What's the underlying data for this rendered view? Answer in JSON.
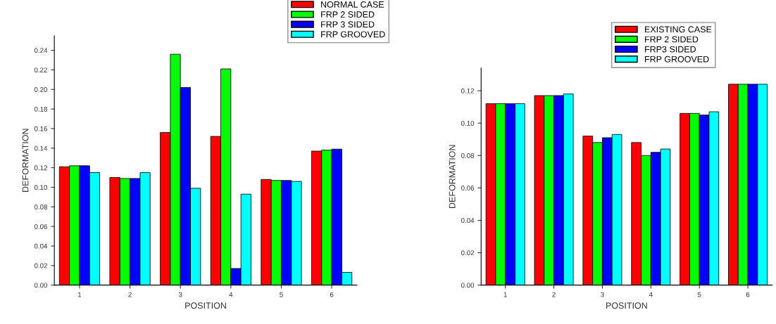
{
  "chart_data": [
    {
      "type": "bar",
      "xlabel": "POSITION",
      "ylabel": "DEFORMATION",
      "categories": [
        "1",
        "2",
        "3",
        "4",
        "5",
        "6"
      ],
      "series": [
        {
          "name": "NORMAL CASE",
          "color": "#ff0000",
          "values": [
            0.121,
            0.11,
            0.156,
            0.152,
            0.108,
            0.137
          ]
        },
        {
          "name": "FRP 2 SIDED",
          "color": "#00ff00",
          "values": [
            0.122,
            0.109,
            0.236,
            0.221,
            0.107,
            0.138
          ]
        },
        {
          "name": "FRP 3 SIDED",
          "color": "#0000ff",
          "values": [
            0.122,
            0.109,
            0.202,
            0.017,
            0.107,
            0.139
          ]
        },
        {
          "name": "FRP GROOVED",
          "color": "#00ffff",
          "values": [
            0.115,
            0.115,
            0.099,
            0.093,
            0.106,
            0.013
          ]
        }
      ],
      "ylim": [
        0,
        0.255
      ],
      "yticks": [
        {
          "value": 0,
          "label": "0.00"
        },
        {
          "value": 0.02,
          "label": "0.02"
        },
        {
          "value": 0.04,
          "label": "0.04"
        },
        {
          "value": 0.06,
          "label": "0.06"
        },
        {
          "value": 0.08,
          "label": "0.08"
        },
        {
          "value": 0.1,
          "label": "0.10"
        },
        {
          "value": 0.12,
          "label": "0.12"
        },
        {
          "value": 0.14,
          "label": "0.14"
        },
        {
          "value": 0.16,
          "label": "0.16"
        },
        {
          "value": 0.18,
          "label": "0.18"
        },
        {
          "value": 0.2,
          "label": "0.20"
        },
        {
          "value": 0.22,
          "label": "0.22"
        },
        {
          "value": 0.24,
          "label": "0.24"
        }
      ],
      "legend": "top right",
      "grid": false
    },
    {
      "type": "bar",
      "xlabel": "POSITION",
      "ylabel": "DEFORMATION",
      "categories": [
        "1",
        "2",
        "3",
        "4",
        "5",
        "6"
      ],
      "series": [
        {
          "name": "EXISTING CASE",
          "color": "#ff0000",
          "values": [
            0.112,
            0.117,
            0.092,
            0.088,
            0.106,
            0.124
          ]
        },
        {
          "name": "FRP 2 SIDED",
          "color": "#00ff00",
          "values": [
            0.112,
            0.117,
            0.088,
            0.08,
            0.106,
            0.124
          ]
        },
        {
          "name": "FRP3 SIDED",
          "color": "#0000ff",
          "values": [
            0.112,
            0.117,
            0.091,
            0.082,
            0.105,
            0.124
          ]
        },
        {
          "name": "FRP GROOVED",
          "color": "#00ffff",
          "values": [
            0.112,
            0.118,
            0.093,
            0.084,
            0.107,
            0.124
          ]
        }
      ],
      "ylim": [
        0,
        0.134
      ],
      "yticks": [
        {
          "value": 0,
          "label": "0.00"
        },
        {
          "value": 0.02,
          "label": "0.02"
        },
        {
          "value": 0.04,
          "label": "0.04"
        },
        {
          "value": 0.06,
          "label": "0.06"
        },
        {
          "value": 0.08,
          "label": "0.08"
        },
        {
          "value": 0.1,
          "label": "0.10"
        },
        {
          "value": 0.12,
          "label": "0.12"
        }
      ],
      "legend": "top right",
      "grid": false
    }
  ]
}
